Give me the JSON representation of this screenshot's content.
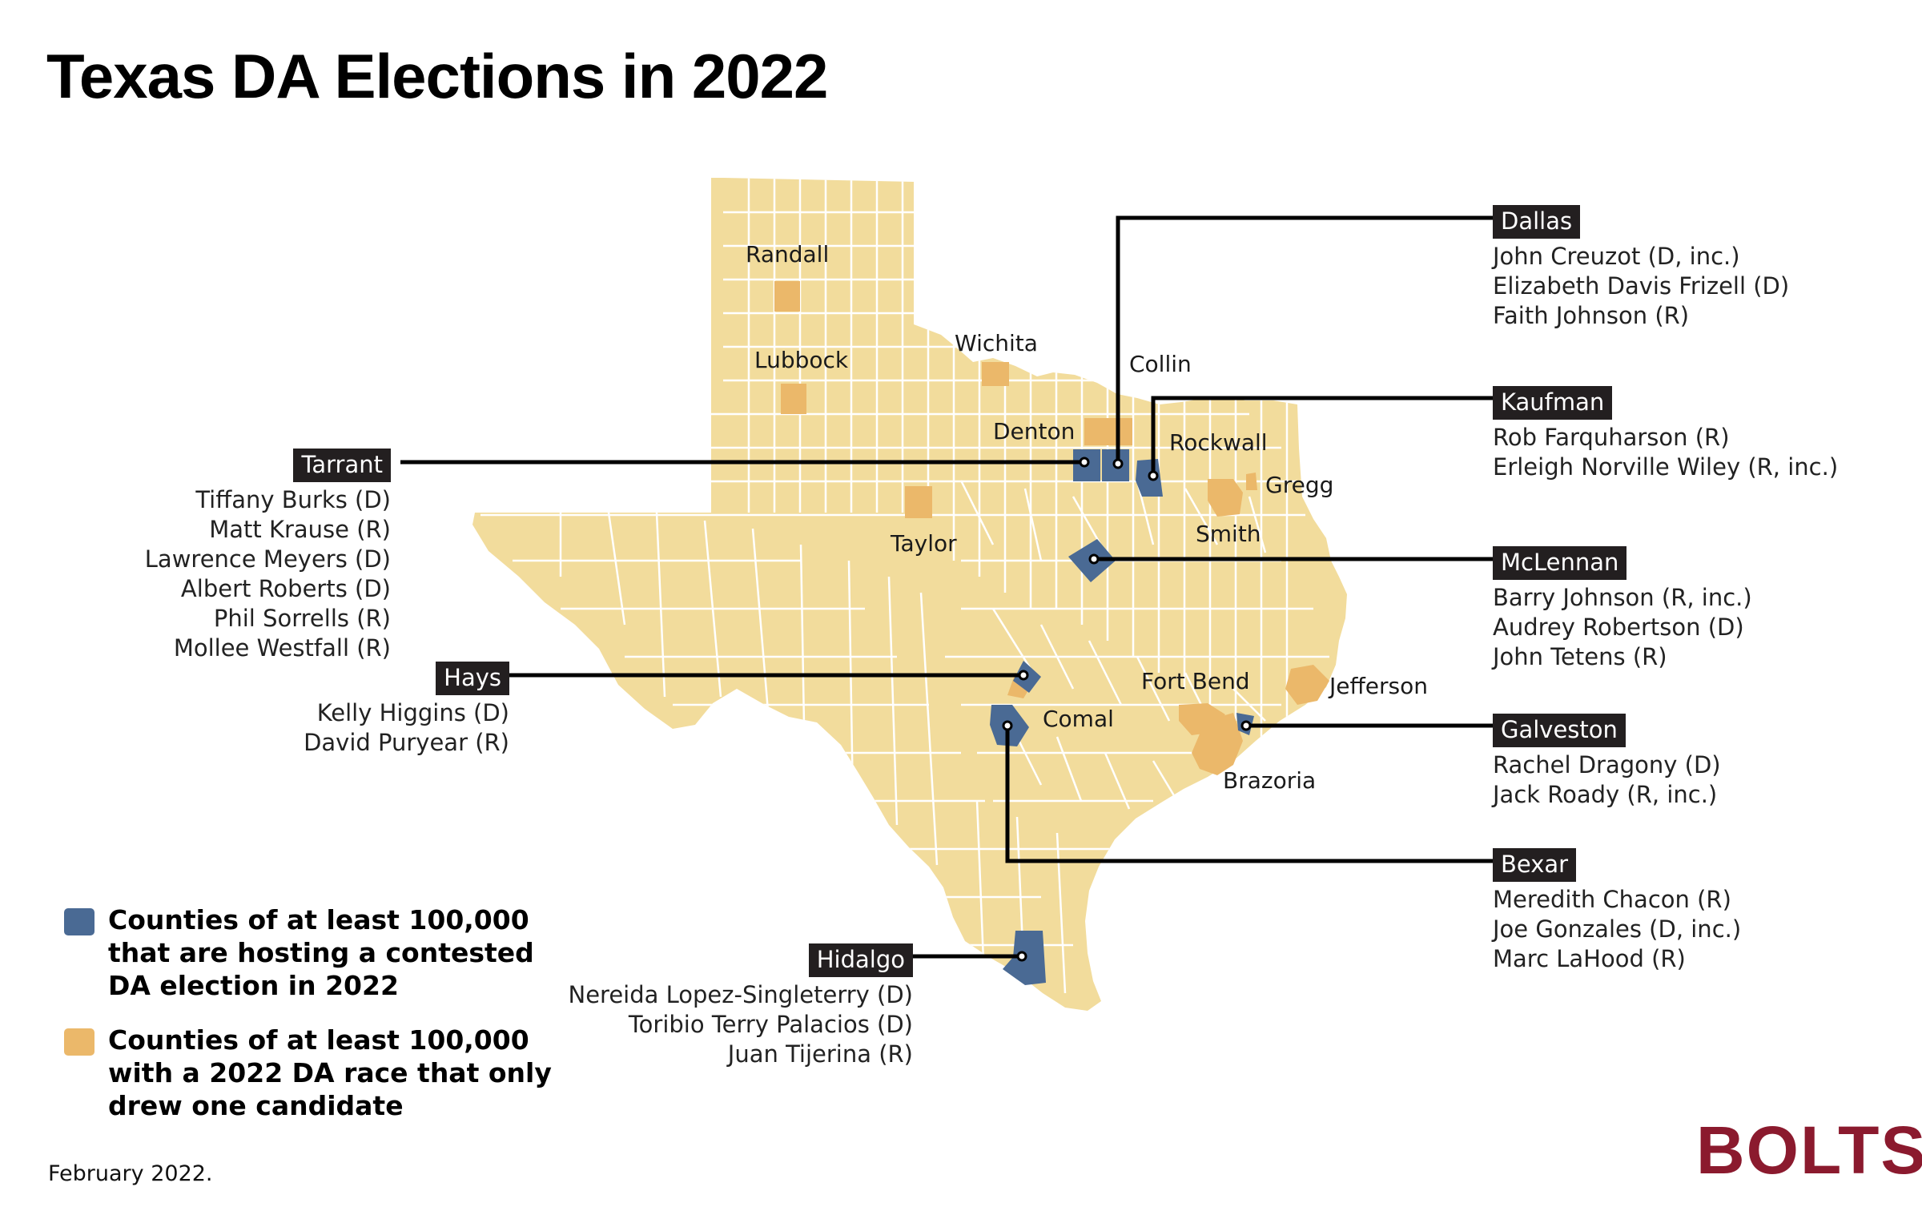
{
  "title": "Texas DA Elections in 2022",
  "colors": {
    "state_fill": "#f2dc9c",
    "contested": "#4a6a94",
    "uncontested": "#ebb86a",
    "callout_tag": "#231f20",
    "brand": "#8b1a2e"
  },
  "county_labels": {
    "randall": "Randall",
    "lubbock": "Lubbock",
    "wichita": "Wichita",
    "collin": "Collin",
    "denton": "Denton",
    "rockwall": "Rockwall",
    "gregg": "Gregg",
    "taylor": "Taylor",
    "smith": "Smith",
    "fort_bend": "Fort Bend",
    "jefferson": "Jefferson",
    "comal": "Comal",
    "brazoria": "Brazoria"
  },
  "callouts": {
    "dallas": {
      "county": "Dallas",
      "candidates": [
        "John Creuzot (D, inc.)",
        "Elizabeth Davis Frizell (D)",
        "Faith Johnson (R)"
      ]
    },
    "kaufman": {
      "county": "Kaufman",
      "candidates": [
        "Rob Farquharson (R)",
        "Erleigh Norville Wiley (R, inc.)"
      ]
    },
    "mclennan": {
      "county": "McLennan",
      "candidates": [
        "Barry Johnson (R, inc.)",
        "Audrey Robertson (D)",
        "John Tetens (R)"
      ]
    },
    "galveston": {
      "county": "Galveston",
      "candidates": [
        "Rachel Dragony (D)",
        "Jack Roady (R, inc.)"
      ]
    },
    "bexar": {
      "county": "Bexar",
      "candidates": [
        "Meredith Chacon (R)",
        "Joe Gonzales (D, inc.)",
        "Marc LaHood (R)"
      ]
    },
    "tarrant": {
      "county": "Tarrant",
      "candidates": [
        "Tiffany Burks (D)",
        "Matt Krause (R)",
        "Lawrence Meyers (D)",
        "Albert Roberts (D)",
        "Phil Sorrells (R)",
        "Mollee Westfall (R)"
      ]
    },
    "hays": {
      "county": "Hays",
      "candidates": [
        "Kelly Higgins (D)",
        "David Puryear (R)"
      ]
    },
    "hidalgo": {
      "county": "Hidalgo",
      "candidates": [
        "Nereida Lopez-Singleterry (D)",
        "Toribio Terry Palacios (D)",
        "Juan Tijerina (R)"
      ]
    }
  },
  "legend": {
    "contested": "Counties of at least 100,000 that are hosting a contested DA election in 2022",
    "uncontested": "Counties of at least 100,000 with a 2022 DA race that only drew one candidate"
  },
  "footnote": "February 2022.",
  "logo": "BOLTS"
}
